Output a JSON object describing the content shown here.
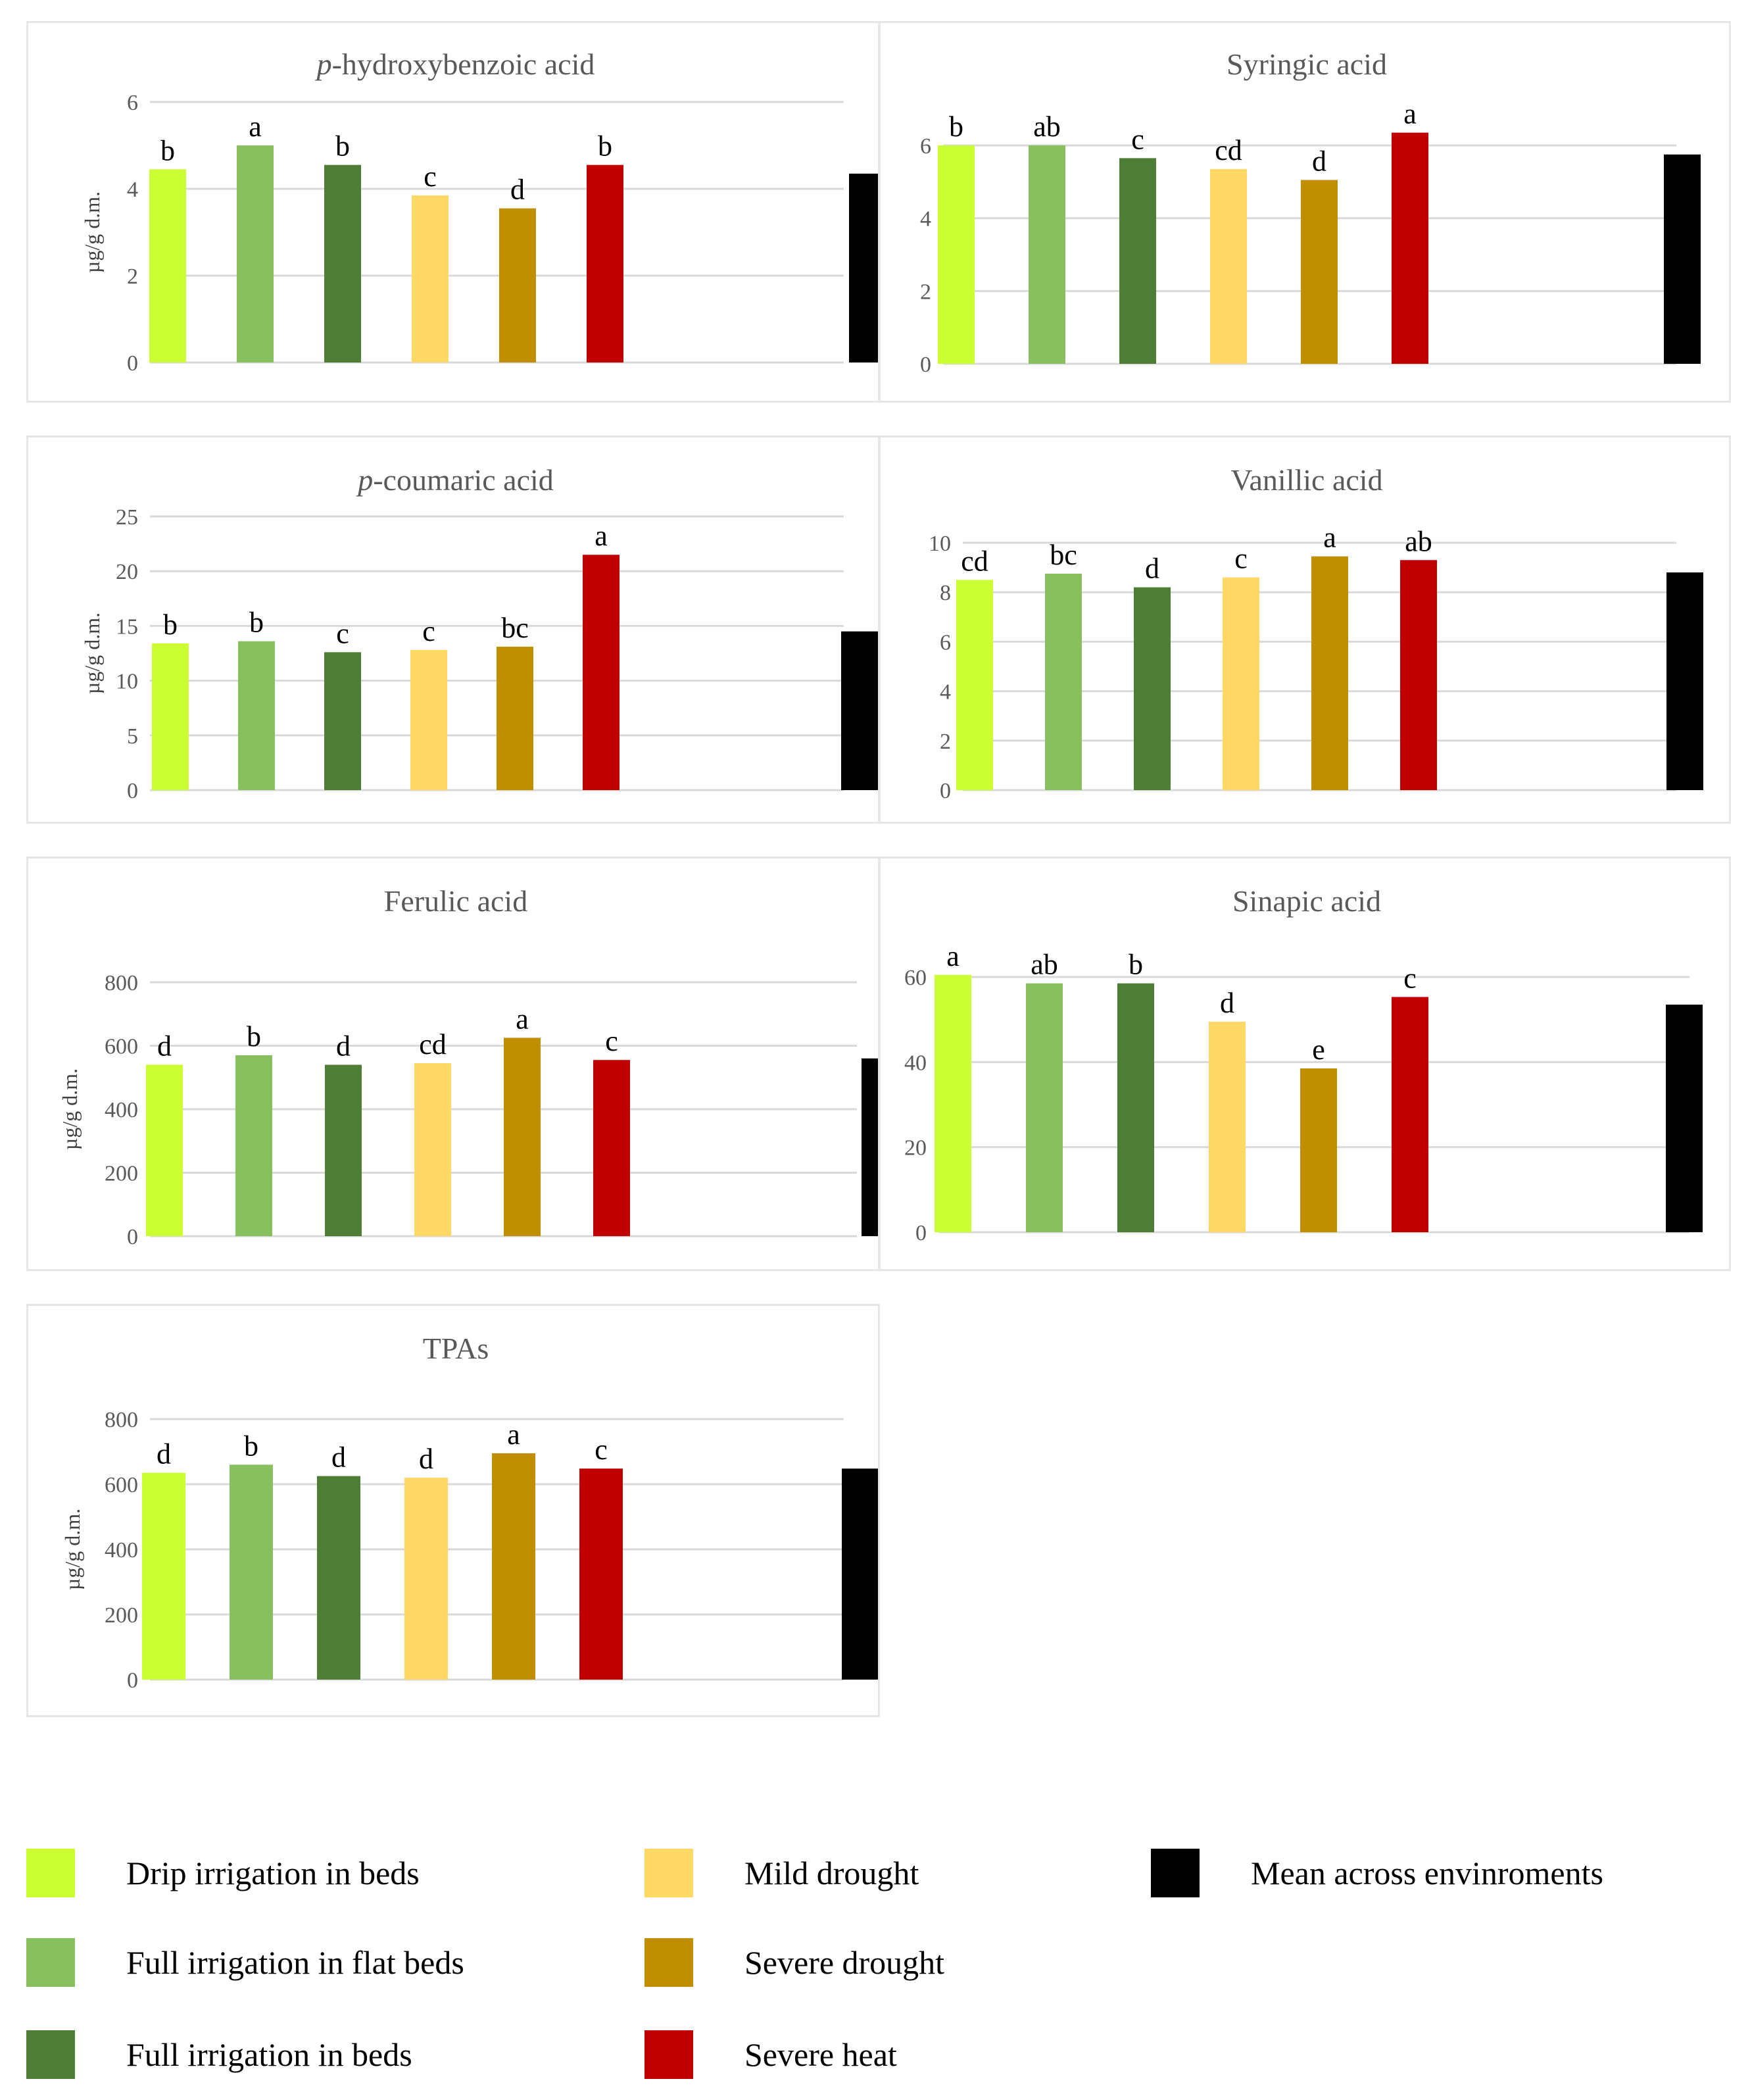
{
  "colors": [
    "#ccff33",
    "#88c060",
    "#4e7d35",
    "#ffd866",
    "#bf8f00",
    "#c00000",
    "#000000"
  ],
  "chart_data": [
    {
      "type": "bar",
      "title_prefix": "p",
      "title": "-hydroxybenzoic acid",
      "ylabel": "µg/g d.m.",
      "yticks": [
        0,
        2,
        4,
        6
      ],
      "ylim": [
        0,
        6
      ],
      "values": [
        4.45,
        5.0,
        4.55,
        3.85,
        3.55,
        4.55,
        4.35
      ],
      "letters": [
        "b",
        "a",
        "b",
        "c",
        "d",
        "b",
        ""
      ]
    },
    {
      "type": "bar",
      "title_prefix": "",
      "title": "Syringic acid",
      "ylabel": "",
      "yticks": [
        0,
        2,
        4,
        6
      ],
      "ylim": [
        0,
        6
      ],
      "values": [
        6.0,
        6.0,
        5.65,
        5.35,
        5.05,
        6.35,
        5.75
      ],
      "letters": [
        "b",
        "ab",
        "c",
        "cd",
        "d",
        "a",
        ""
      ]
    },
    {
      "type": "bar",
      "title_prefix": "p",
      "title": "-coumaric acid",
      "ylabel": "µg/g d.m.",
      "yticks": [
        0,
        5,
        10,
        15,
        20,
        25
      ],
      "ylim": [
        0,
        25
      ],
      "values": [
        13.4,
        13.6,
        12.6,
        12.8,
        13.1,
        21.5,
        14.5
      ],
      "letters": [
        "b",
        "b",
        "c",
        "c",
        "bc",
        "a",
        ""
      ]
    },
    {
      "type": "bar",
      "title_prefix": "",
      "title": "Vanillic acid",
      "ylabel": "",
      "yticks": [
        0,
        2,
        4,
        6,
        8,
        10
      ],
      "ylim": [
        0,
        10
      ],
      "values": [
        8.5,
        8.75,
        8.2,
        8.6,
        9.45,
        9.3,
        8.8
      ],
      "letters": [
        "cd",
        "bc",
        "d",
        "c",
        "a",
        "ab",
        ""
      ]
    },
    {
      "type": "bar",
      "title_prefix": "",
      "title": "Ferulic acid",
      "ylabel": "µg/g d.m.",
      "yticks": [
        0,
        200,
        400,
        600,
        800
      ],
      "ylim": [
        0,
        800
      ],
      "values": [
        540,
        570,
        540,
        545,
        625,
        555,
        560
      ],
      "letters": [
        "d",
        "b",
        "d",
        "cd",
        "a",
        "c",
        ""
      ]
    },
    {
      "type": "bar",
      "title_prefix": "",
      "title": "Sinapic acid",
      "ylabel": "",
      "yticks": [
        0,
        20,
        40,
        60
      ],
      "ylim": [
        0,
        60
      ],
      "values": [
        60.5,
        58.5,
        58.5,
        49.5,
        38.5,
        55.3,
        53.5
      ],
      "letters": [
        "a",
        "ab",
        "b",
        "d",
        "e",
        "c",
        ""
      ]
    },
    {
      "type": "bar",
      "title_prefix": "",
      "title": "TPAs",
      "ylabel": "µg/g d.m.",
      "yticks": [
        0,
        200,
        400,
        600,
        800
      ],
      "ylim": [
        0,
        800
      ],
      "values": [
        635,
        660,
        625,
        620,
        695,
        648,
        648
      ],
      "letters": [
        "d",
        "b",
        "d",
        "d",
        "a",
        "c",
        ""
      ]
    }
  ],
  "legend": [
    {
      "label": "Drip irrigation in beds",
      "color": "#ccff33"
    },
    {
      "label": "Full irrigation in flat beds",
      "color": "#88c060"
    },
    {
      "label": "Full irrigation in beds",
      "color": "#4e7d35"
    },
    {
      "label": "Mild drought",
      "color": "#ffd866"
    },
    {
      "label": "Severe drought",
      "color": "#bf8f00"
    },
    {
      "label": "Severe heat",
      "color": "#c00000"
    },
    {
      "label": "Mean across envinroments",
      "color": "#000000"
    }
  ]
}
